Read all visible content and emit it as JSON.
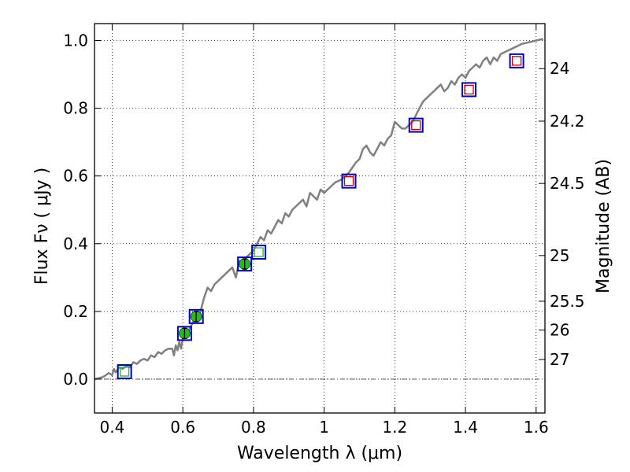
{
  "chart_data": {
    "type": "scatter",
    "xlabel": "Wavelength  λ (μm)",
    "ylabel": "Flux  Fν ( μJy )",
    "ylabel_right": "Magnitude (AB)",
    "xlim": [
      0.35,
      1.625
    ],
    "ylim": [
      -0.1,
      1.05
    ],
    "grid": true,
    "x_ticks": [
      0.4,
      0.6,
      0.8,
      1.0,
      1.2,
      1.4,
      1.6
    ],
    "x_tick_labels": [
      "0.4",
      "0.6",
      "0.8",
      "1",
      "1.2",
      "1.4",
      "1.6"
    ],
    "y_ticks": [
      0.0,
      0.2,
      0.4,
      0.6,
      0.8,
      1.0
    ],
    "y_tick_labels": [
      "0.0",
      "0.2",
      "0.4",
      "0.6",
      "0.8",
      "1.0"
    ],
    "right_ticks": [
      {
        "label": "24",
        "flux": 0.917
      },
      {
        "label": "24.2",
        "flux": 0.762
      },
      {
        "label": "24.5",
        "flux": 0.578
      },
      {
        "label": "25",
        "flux": 0.365
      },
      {
        "label": "25.5",
        "flux": 0.23
      },
      {
        "label": "26",
        "flux": 0.145
      },
      {
        "label": "27",
        "flux": 0.058
      }
    ],
    "reference_line_y": 0.0,
    "series": [
      {
        "kind": "model-spectrum",
        "color": "#808080",
        "x": [
          0.35,
          0.37,
          0.38,
          0.39,
          0.4,
          0.405,
          0.41,
          0.42,
          0.43,
          0.44,
          0.45,
          0.46,
          0.47,
          0.48,
          0.49,
          0.5,
          0.51,
          0.52,
          0.53,
          0.54,
          0.55,
          0.56,
          0.57,
          0.575,
          0.58,
          0.585,
          0.59,
          0.595,
          0.6,
          0.61,
          0.62,
          0.63,
          0.64,
          0.65,
          0.66,
          0.67,
          0.68,
          0.69,
          0.7,
          0.71,
          0.72,
          0.73,
          0.74,
          0.75,
          0.76,
          0.77,
          0.78,
          0.79,
          0.8,
          0.81,
          0.82,
          0.83,
          0.84,
          0.85,
          0.86,
          0.87,
          0.88,
          0.89,
          0.9,
          0.91,
          0.92,
          0.93,
          0.94,
          0.95,
          0.96,
          0.97,
          0.98,
          0.99,
          1.0,
          1.01,
          1.02,
          1.03,
          1.05,
          1.07,
          1.09,
          1.1,
          1.11,
          1.12,
          1.13,
          1.14,
          1.15,
          1.16,
          1.17,
          1.18,
          1.19,
          1.2,
          1.21,
          1.22,
          1.23,
          1.24,
          1.25,
          1.26,
          1.27,
          1.28,
          1.29,
          1.3,
          1.31,
          1.32,
          1.33,
          1.34,
          1.35,
          1.36,
          1.37,
          1.38,
          1.39,
          1.4,
          1.41,
          1.42,
          1.43,
          1.44,
          1.45,
          1.46,
          1.47,
          1.48,
          1.49,
          1.5,
          1.52,
          1.54,
          1.56,
          1.58,
          1.6,
          1.62
        ],
        "y": [
          0.0,
          0.005,
          0.01,
          0.018,
          0.012,
          0.03,
          0.02,
          0.035,
          0.03,
          0.04,
          0.035,
          0.05,
          0.045,
          0.055,
          0.06,
          0.055,
          0.07,
          0.065,
          0.08,
          0.075,
          0.085,
          0.09,
          0.09,
          0.07,
          0.1,
          0.085,
          0.11,
          0.09,
          0.12,
          0.13,
          0.15,
          0.17,
          0.19,
          0.2,
          0.24,
          0.27,
          0.26,
          0.28,
          0.29,
          0.3,
          0.31,
          0.32,
          0.33,
          0.3,
          0.35,
          0.33,
          0.36,
          0.37,
          0.38,
          0.4,
          0.42,
          0.41,
          0.44,
          0.43,
          0.45,
          0.47,
          0.46,
          0.49,
          0.48,
          0.5,
          0.51,
          0.52,
          0.53,
          0.51,
          0.55,
          0.54,
          0.53,
          0.56,
          0.55,
          0.56,
          0.57,
          0.58,
          0.59,
          0.61,
          0.64,
          0.65,
          0.68,
          0.69,
          0.67,
          0.66,
          0.68,
          0.7,
          0.69,
          0.71,
          0.72,
          0.76,
          0.75,
          0.74,
          0.74,
          0.75,
          0.76,
          0.78,
          0.8,
          0.82,
          0.83,
          0.84,
          0.85,
          0.86,
          0.87,
          0.85,
          0.86,
          0.88,
          0.87,
          0.89,
          0.9,
          0.89,
          0.91,
          0.92,
          0.93,
          0.92,
          0.94,
          0.95,
          0.93,
          0.95,
          0.94,
          0.96,
          0.97,
          0.98,
          0.99,
          0.995,
          1.0,
          1.005
        ]
      },
      {
        "kind": "model-photometry",
        "marker": "open-square",
        "color": "#0000cc",
        "x": [
          0.435,
          0.605,
          0.638,
          0.775,
          0.815,
          1.07,
          1.26,
          1.41,
          1.545
        ],
        "y": [
          0.022,
          0.135,
          0.185,
          0.34,
          0.375,
          0.585,
          0.75,
          0.855,
          0.94
        ]
      },
      {
        "kind": "observed-flux",
        "marker": "filled-circle",
        "color": "#22bb22",
        "x": [
          0.605,
          0.638,
          0.775
        ],
        "y": [
          0.135,
          0.185,
          0.34
        ],
        "yerr": [
          0.015,
          0.015,
          0.015
        ]
      },
      {
        "kind": "upper-limit",
        "marker": "open-square-small",
        "color": "#22bb22",
        "x": [
          0.435,
          0.815
        ],
        "y": [
          0.022,
          0.375
        ]
      },
      {
        "kind": "upper-limit",
        "marker": "open-square-small",
        "color": "#cc0000",
        "x": [
          1.07,
          1.26,
          1.41,
          1.545
        ],
        "y": [
          0.585,
          0.75,
          0.855,
          0.94
        ]
      }
    ]
  }
}
